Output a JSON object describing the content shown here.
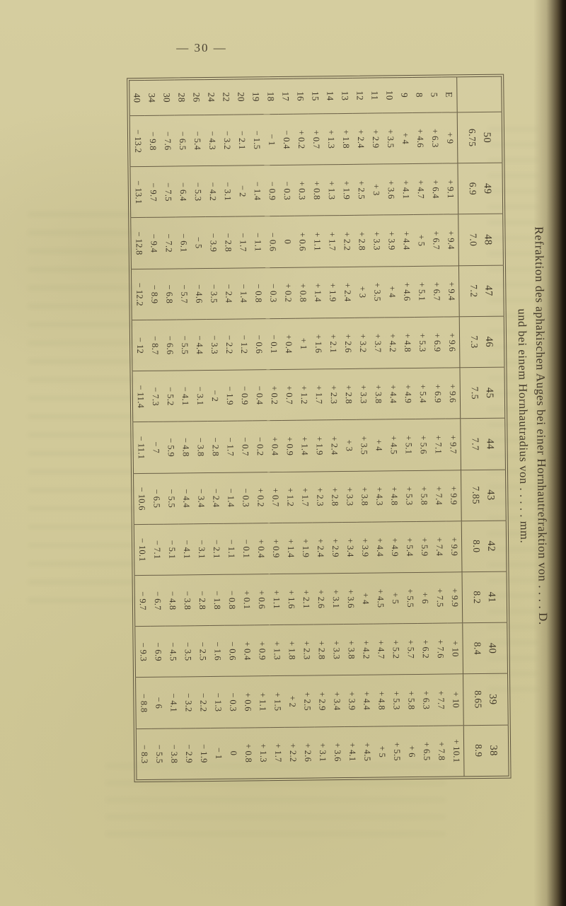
{
  "page": {
    "number": "30",
    "number_display": "— 30 —"
  },
  "title": {
    "line1": "Refraktion des aphakischen Auges bei einer Hornhautrefraktion von . . . . D.",
    "line2": "und bei einem Hornhautradius von . . . . . mm."
  },
  "colors": {
    "paper": "#d2ca9b",
    "ink": "#3e3627",
    "rule": "#6a5f46",
    "binding_edge": "#17100a"
  },
  "table": {
    "corner_label": "",
    "columns": [
      {
        "power_d": "50",
        "radius_mm": "6.75"
      },
      {
        "power_d": "49",
        "radius_mm": "6.9"
      },
      {
        "power_d": "48",
        "radius_mm": "7.0"
      },
      {
        "power_d": "47",
        "radius_mm": "7.2"
      },
      {
        "power_d": "46",
        "radius_mm": "7.3"
      },
      {
        "power_d": "45",
        "radius_mm": "7.5"
      },
      {
        "power_d": "44",
        "radius_mm": "7.7"
      },
      {
        "power_d": "43",
        "radius_mm": "7.85"
      },
      {
        "power_d": "42",
        "radius_mm": "8.0"
      },
      {
        "power_d": "41",
        "radius_mm": "8.2"
      },
      {
        "power_d": "40",
        "radius_mm": "8.4"
      },
      {
        "power_d": "39",
        "radius_mm": "8.65"
      },
      {
        "power_d": "38",
        "radius_mm": "8.9"
      }
    ],
    "rows": [
      {
        "label": "E",
        "values": [
          "+9",
          "+9.1",
          "+9.4",
          "+9.4",
          "+9.6",
          "+9.6",
          "+9.7",
          "+9.9",
          "+9.9",
          "+9.9",
          "+10",
          "+10",
          "+10.1"
        ]
      },
      {
        "label": "5",
        "values": [
          "+6.3",
          "+6.4",
          "+6.7",
          "+6.7",
          "+6.9",
          "+6.9",
          "+7.1",
          "+7.4",
          "+7.4",
          "+7.5",
          "+7.6",
          "+7.7",
          "+7.8"
        ]
      },
      {
        "label": "8",
        "values": [
          "+4.6",
          "+4.7",
          "+5",
          "+5.1",
          "+5.3",
          "+5.4",
          "+5.6",
          "+5.8",
          "+5.9",
          "+6",
          "+6.2",
          "+6.3",
          "+6.5"
        ]
      },
      {
        "label": "9",
        "values": [
          "+4",
          "+4.1",
          "+4.4",
          "+4.6",
          "+4.8",
          "+4.9",
          "+5.1",
          "+5.3",
          "+5.4",
          "+5.5",
          "+5.7",
          "+5.8",
          "+6"
        ]
      },
      {
        "label": "10",
        "values": [
          "+3.5",
          "+3.6",
          "+3.9",
          "+4",
          "+4.2",
          "+4.4",
          "+4.5",
          "+4.8",
          "+4.9",
          "+5",
          "+5.2",
          "+5.3",
          "+5.5"
        ]
      },
      {
        "label": "11",
        "values": [
          "+2.9",
          "+3",
          "+3.3",
          "+3.5",
          "+3.7",
          "+3.8",
          "+4",
          "+4.3",
          "+4.4",
          "+4.5",
          "+4.7",
          "+4.8",
          "+5"
        ]
      },
      {
        "label": "12",
        "values": [
          "+2.4",
          "+2.5",
          "+2.8",
          "+3",
          "+3.2",
          "+3.3",
          "+3.5",
          "+3.8",
          "+3.9",
          "+4",
          "+4.2",
          "+4.4",
          "+4.5"
        ]
      },
      {
        "label": "13",
        "values": [
          "+1.8",
          "+1.9",
          "+2.2",
          "+2.4",
          "+2.6",
          "+2.8",
          "+3",
          "+3.3",
          "+3.4",
          "+3.6",
          "+3.8",
          "+3.9",
          "+4.1"
        ]
      },
      {
        "label": "14",
        "values": [
          "+1.3",
          "+1.3",
          "+1.7",
          "+1.9",
          "+2.1",
          "+2.3",
          "+2.4",
          "+2.8",
          "+2.9",
          "+3.1",
          "+3.3",
          "+3.4",
          "+3.6"
        ]
      },
      {
        "label": "15",
        "values": [
          "+0.7",
          "+0.8",
          "+1.1",
          "+1.4",
          "+1.6",
          "+1.7",
          "+1.9",
          "+2.3",
          "+2.4",
          "+2.6",
          "+2.8",
          "+2.9",
          "+3.1"
        ]
      },
      {
        "label": "16",
        "values": [
          "+0.2",
          "+0.3",
          "+0.6",
          "+0.8",
          "+1",
          "+1.2",
          "+1.4",
          "+1.7",
          "+1.9",
          "+2.1",
          "+2.3",
          "+2.5",
          "+2.6"
        ]
      },
      {
        "label": "17",
        "values": [
          "−0.4",
          "−0.3",
          "0",
          "+0.2",
          "+0.4",
          "+0.7",
          "+0.9",
          "+1.2",
          "+1.4",
          "+1.6",
          "+1.8",
          "+2",
          "+2.2"
        ]
      },
      {
        "label": "18",
        "values": [
          "−1",
          "−0.9",
          "−0.6",
          "−0.3",
          "−0.1",
          "+0.2",
          "+0.4",
          "+0.7",
          "+0.9",
          "+1.1",
          "+1.3",
          "+1.5",
          "+1.7"
        ]
      },
      {
        "label": "19",
        "values": [
          "−1.5",
          "−1.4",
          "−1.1",
          "−0.8",
          "−0.6",
          "−0.4",
          "−0.2",
          "+0.2",
          "+0.4",
          "+0.6",
          "+0.9",
          "+1.1",
          "+1.3"
        ]
      },
      {
        "label": "20",
        "values": [
          "−2.1",
          "−2",
          "−1.7",
          "−1.4",
          "−1.2",
          "−0.9",
          "−0.7",
          "−0.3",
          "−0.1",
          "+0.1",
          "+0.4",
          "+0.6",
          "+0.8"
        ]
      },
      {
        "label": "22",
        "values": [
          "−3.2",
          "−3.1",
          "−2.8",
          "−2.4",
          "−2.2",
          "−1.9",
          "−1.7",
          "−1.4",
          "−1.1",
          "−0.8",
          "−0.6",
          "−0.3",
          "0"
        ]
      },
      {
        "label": "24",
        "values": [
          "−4.3",
          "−4.2",
          "−3.9",
          "−3.5",
          "−3.3",
          "−2",
          "−2.8",
          "−2.4",
          "−2.1",
          "−1.8",
          "−1.6",
          "−1.3",
          "−1"
        ]
      },
      {
        "label": "26",
        "values": [
          "−5.4",
          "−5.3",
          "−5",
          "−4.6",
          "−4.4",
          "−3.1",
          "−3.8",
          "−3.4",
          "−3.1",
          "−2.8",
          "−2.5",
          "−2.2",
          "−1.9"
        ]
      },
      {
        "label": "28",
        "values": [
          "−6.5",
          "−6.4",
          "−6.1",
          "−5.7",
          "−5.5",
          "−4.1",
          "−4.8",
          "−4.4",
          "−4.1",
          "−3.8",
          "−3.5",
          "−3.2",
          "−2.9"
        ]
      },
      {
        "label": "30",
        "values": [
          "−7.6",
          "−7.5",
          "−7.2",
          "−6.8",
          "−6.6",
          "−5.2",
          "−5.9",
          "−5.5",
          "−5.1",
          "−4.8",
          "−4.5",
          "−4.1",
          "−3.8"
        ]
      },
      {
        "label": "34",
        "values": [
          "−9.8",
          "−9.7",
          "−9.4",
          "−8.9",
          "−8.7",
          "−7.3",
          "−7",
          "−6.5",
          "−7.1",
          "−6.7",
          "−6.9",
          "−6",
          "−5.5"
        ]
      },
      {
        "label": "40",
        "values": [
          "−13.2",
          "−13.1",
          "−12.8",
          "−12.2",
          "−12",
          "−11.4",
          "−11.1",
          "−10.6",
          "−10.1",
          "−9.7",
          "−9.3",
          "−8.8",
          "−8.3"
        ]
      }
    ]
  }
}
